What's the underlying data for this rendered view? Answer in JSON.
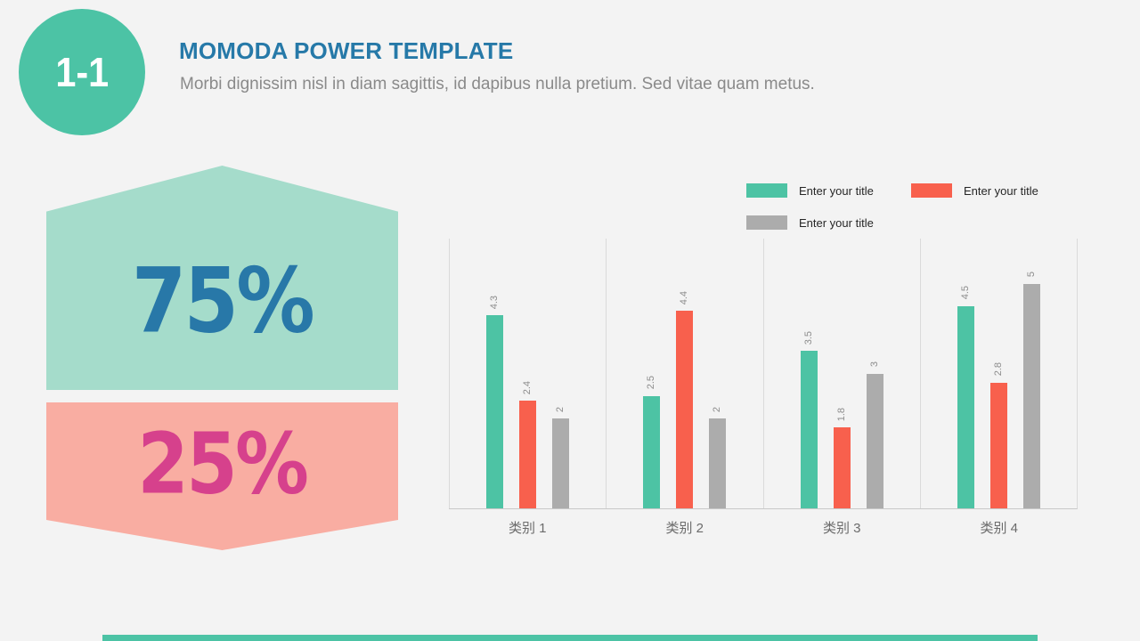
{
  "slide": {
    "badge": "1-1",
    "title": "MOMODA POWER TEMPLATE",
    "subtitle": "Morbi dignissim nisl in diam sagittis, id dapibus nulla pretium. Sed vitae quam metus.",
    "stats": [
      {
        "value": "75%",
        "bg": "#A5DCCB",
        "text_color": "#2878A8"
      },
      {
        "value": "25%",
        "bg": "#F9ADA2",
        "text_color": "#D6418C"
      }
    ]
  },
  "colors": {
    "background": "#F3F3F3",
    "badge_circle": "#4CC3A5",
    "title_blue": "#2679A8",
    "subtitle_gray": "#8A8A8A",
    "gridline": "#DADADA",
    "footer_bar": "#4CC3A5"
  },
  "chart_data": {
    "type": "bar",
    "categories": [
      "类别 1",
      "类别 2",
      "类别 3",
      "类别 4"
    ],
    "series": [
      {
        "name": "Enter your title",
        "color": "#4DC3A4",
        "values": [
          4.3,
          2.5,
          3.5,
          4.5
        ]
      },
      {
        "name": "Enter your title",
        "color": "#F8604D",
        "values": [
          2.4,
          4.4,
          1.8,
          2.8
        ]
      },
      {
        "name": "Enter your title",
        "color": "#ACACAC",
        "values": [
          2,
          2,
          3,
          5
        ]
      }
    ],
    "ylim": [
      0,
      6
    ],
    "grid": "vertical-category-separators",
    "legend_position": "top-right",
    "data_labels": true,
    "data_label_rotation": -90,
    "xlabel": "",
    "ylabel": ""
  }
}
